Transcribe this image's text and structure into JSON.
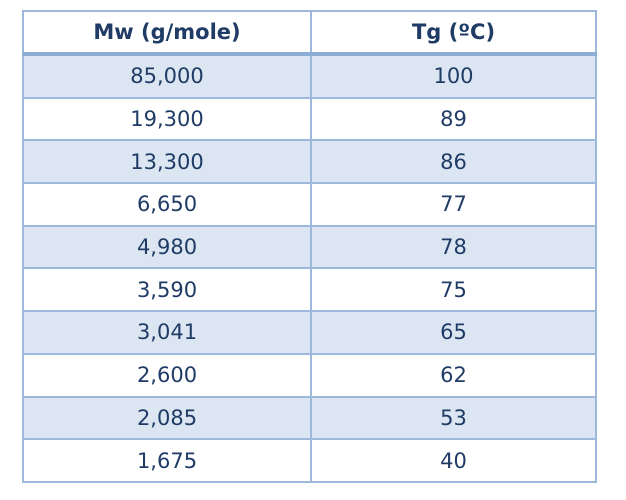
{
  "table": {
    "header": [
      "Mw (g/mole)",
      "Tg (ºC)"
    ],
    "rows": [
      [
        "85,000",
        "100"
      ],
      [
        "19,300",
        "89"
      ],
      [
        "13,300",
        "86"
      ],
      [
        "6,650",
        "77"
      ],
      [
        "4,980",
        "78"
      ],
      [
        "3,590",
        "75"
      ],
      [
        "3,041",
        "65"
      ],
      [
        "2,600",
        "62"
      ],
      [
        "2,085",
        "53"
      ],
      [
        "1,675",
        "40"
      ]
    ]
  }
}
